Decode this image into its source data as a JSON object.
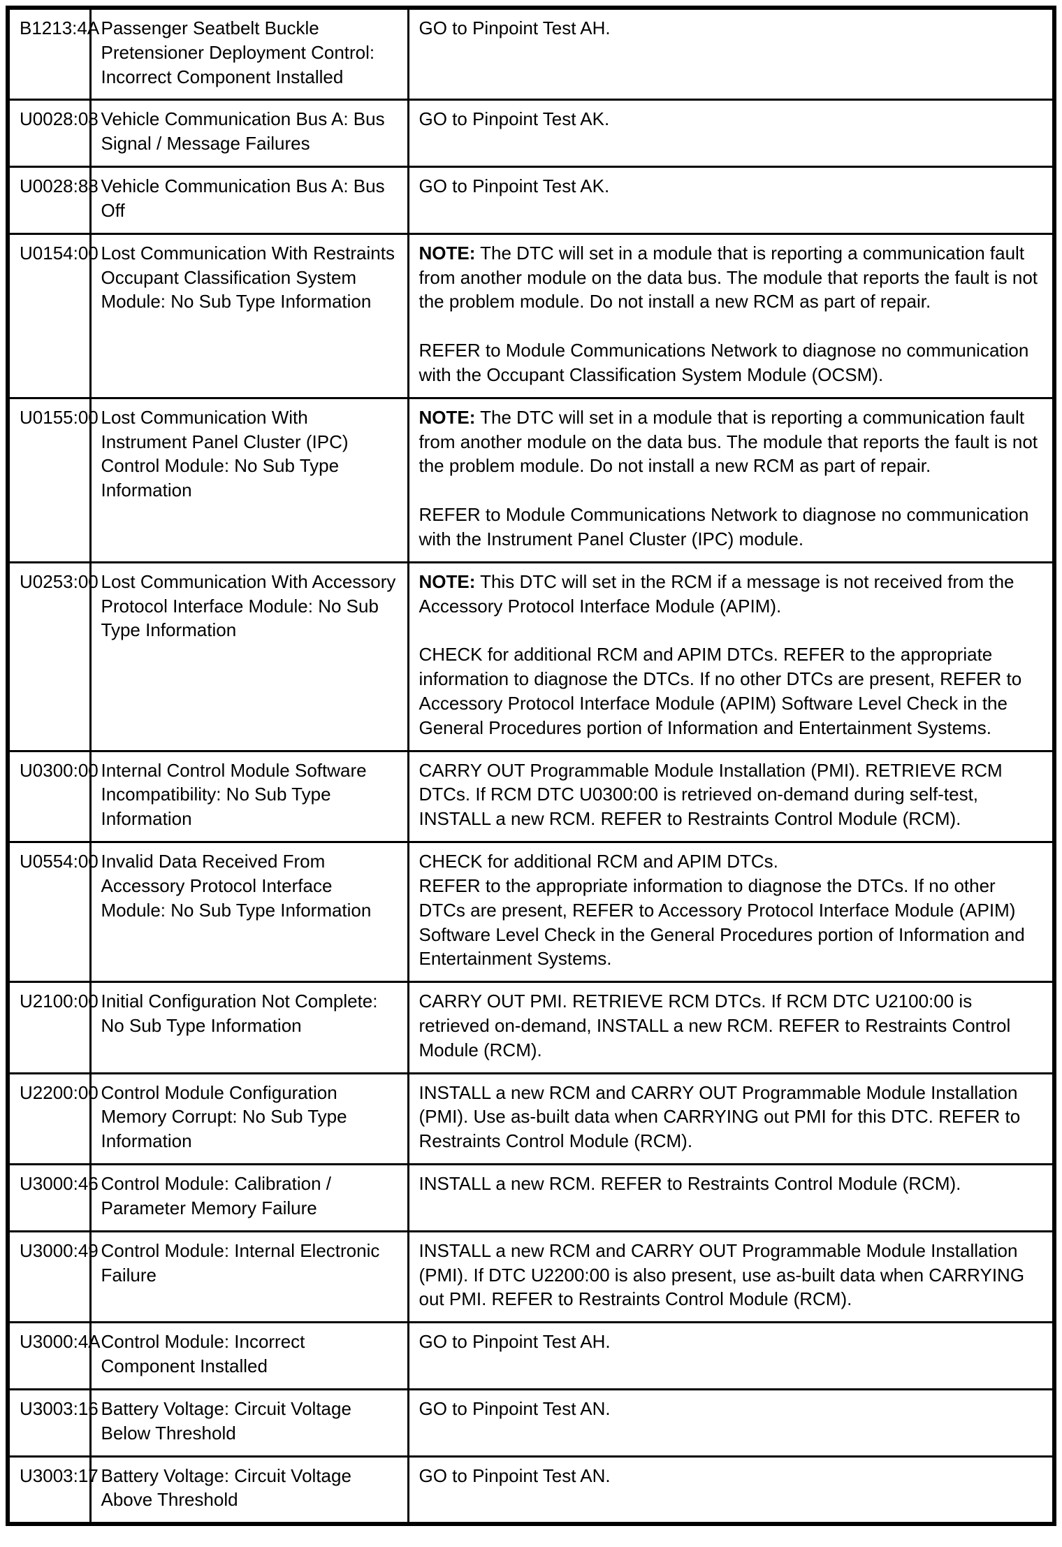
{
  "table": {
    "rows": [
      {
        "code": "B1213:4A",
        "description": "Passenger Seatbelt Buckle Pretensioner Deployment Control: Incorrect Component Installed",
        "action": [
          {
            "bold": "",
            "gap": false,
            "text": "GO to Pinpoint Test AH."
          }
        ]
      },
      {
        "code": "U0028:08",
        "description": "Vehicle Communication Bus A: Bus Signal / Message Failures",
        "action": [
          {
            "bold": "",
            "gap": false,
            "text": "GO to Pinpoint Test AK."
          }
        ]
      },
      {
        "code": "U0028:88",
        "description": "Vehicle Communication Bus A: Bus Off",
        "action": [
          {
            "bold": "",
            "gap": false,
            "text": "GO to Pinpoint Test AK."
          }
        ]
      },
      {
        "code": "U0154:00",
        "description": "Lost Communication With Restraints Occupant Classification System Module: No Sub Type Information",
        "action": [
          {
            "bold": "NOTE:",
            "gap": false,
            "text": " The DTC will set in a module that is reporting a communication fault from another module on the data bus. The module that reports the fault is not the problem module. Do not install a new RCM as part of repair."
          },
          {
            "bold": "",
            "gap": true,
            "text": "REFER to Module Communications Network to diagnose no communication with the Occupant Classification System Module (OCSM)."
          }
        ]
      },
      {
        "code": "U0155:00",
        "description": "Lost Communication With Instrument Panel Cluster (IPC) Control Module: No Sub Type Information",
        "action": [
          {
            "bold": "NOTE:",
            "gap": false,
            "text": " The DTC will set in a module that is reporting a communication fault from another module on the data bus. The module that reports the fault is not the problem module. Do not install a new RCM as part of repair."
          },
          {
            "bold": "",
            "gap": true,
            "text": "REFER to Module Communications Network to diagnose no communication with the Instrument Panel Cluster (IPC) module."
          }
        ]
      },
      {
        "code": "U0253:00",
        "description": "Lost Communication With Accessory Protocol Interface Module: No Sub Type Information",
        "action": [
          {
            "bold": "NOTE:",
            "gap": false,
            "text": " This DTC will set in the RCM if a message is not received from the Accessory Protocol Interface Module (APIM)."
          },
          {
            "bold": "",
            "gap": true,
            "text": "CHECK for additional RCM and APIM DTCs. REFER to the appropriate information to diagnose the DTCs. If no other DTCs are present, REFER to Accessory Protocol Interface Module (APIM) Software Level Check in the General Procedures portion of Information and Entertainment Systems."
          }
        ]
      },
      {
        "code": "U0300:00",
        "description": "Internal Control Module Software Incompatibility: No Sub Type Information",
        "action": [
          {
            "bold": "",
            "gap": false,
            "text": "CARRY OUT Programmable Module Installation (PMI). RETRIEVE RCM DTCs. If RCM DTC U0300:00 is retrieved on-demand during self-test, INSTALL a new RCM. REFER to Restraints Control Module (RCM)."
          }
        ]
      },
      {
        "code": "U0554:00",
        "description": "Invalid Data Received From Accessory Protocol Interface Module: No Sub Type Information",
        "action": [
          {
            "bold": "",
            "gap": false,
            "text": "CHECK for additional RCM and APIM DTCs."
          },
          {
            "bold": "",
            "gap": false,
            "text": "REFER to the appropriate information to diagnose the DTCs. If no other DTCs are present, REFER to Accessory Protocol Interface Module (APIM) Software Level Check in the General Procedures portion of Information and Entertainment Systems."
          }
        ]
      },
      {
        "code": "U2100:00",
        "description": "Initial Configuration Not Complete: No Sub Type Information",
        "action": [
          {
            "bold": "",
            "gap": false,
            "text": "CARRY OUT PMI. RETRIEVE RCM DTCs. If RCM DTC U2100:00 is retrieved on-demand, INSTALL a new RCM. REFER to Restraints Control Module (RCM)."
          }
        ]
      },
      {
        "code": "U2200:00",
        "description": "Control Module Configuration Memory Corrupt: No Sub Type Information",
        "action": [
          {
            "bold": "",
            "gap": false,
            "text": "INSTALL a new RCM and CARRY OUT Programmable Module Installation (PMI). Use as-built data when CARRYING out PMI for this DTC. REFER to Restraints Control Module (RCM)."
          }
        ]
      },
      {
        "code": "U3000:46",
        "description": "Control Module: Calibration / Parameter Memory Failure",
        "action": [
          {
            "bold": "",
            "gap": false,
            "text": "INSTALL a new RCM. REFER to Restraints Control Module (RCM)."
          }
        ]
      },
      {
        "code": "U3000:49",
        "description": "Control Module: Internal Electronic Failure",
        "action": [
          {
            "bold": "",
            "gap": false,
            "text": "INSTALL a new RCM and CARRY OUT Programmable Module Installation (PMI). If DTC U2200:00 is also present, use as-built data when CARRYING out PMI. REFER to Restraints Control Module (RCM)."
          }
        ]
      },
      {
        "code": "U3000:4A",
        "description": "Control Module: Incorrect Component Installed",
        "action": [
          {
            "bold": "",
            "gap": false,
            "text": "GO to Pinpoint Test AH."
          }
        ]
      },
      {
        "code": "U3003:16",
        "description": "Battery Voltage: Circuit Voltage Below Threshold",
        "action": [
          {
            "bold": "",
            "gap": false,
            "text": "GO to Pinpoint Test AN."
          }
        ]
      },
      {
        "code": "U3003:17",
        "description": "Battery Voltage: Circuit Voltage Above Threshold",
        "action": [
          {
            "bold": "",
            "gap": false,
            "text": "GO to Pinpoint Test AN."
          }
        ]
      }
    ]
  }
}
